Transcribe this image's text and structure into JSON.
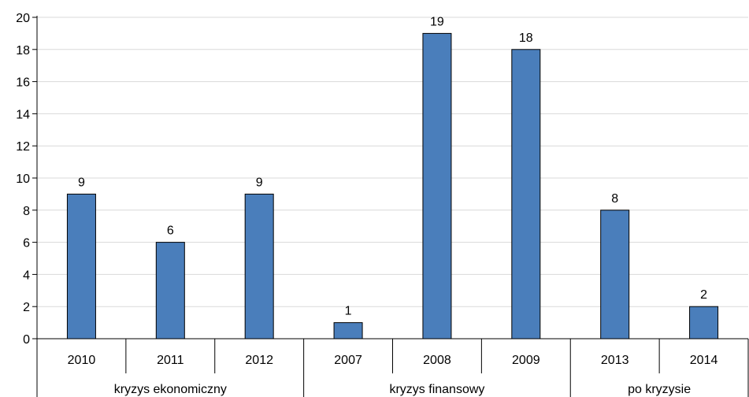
{
  "chart_data": {
    "type": "bar",
    "categories": [
      "2010",
      "2011",
      "2012",
      "2007",
      "2008",
      "2009",
      "2013",
      "2014"
    ],
    "values": [
      9,
      6,
      9,
      1,
      19,
      18,
      8,
      2
    ],
    "groups": [
      {
        "label": "kryzys ekonomiczny",
        "categories": [
          "2010",
          "2011",
          "2012"
        ]
      },
      {
        "label": "kryzys finansowy",
        "categories": [
          "2007",
          "2008",
          "2009"
        ]
      },
      {
        "label": "po kryzysie",
        "categories": [
          "2013",
          "2014"
        ]
      }
    ],
    "y_ticks": [
      "0",
      "2",
      "4",
      "6",
      "8",
      "10",
      "12",
      "14",
      "16",
      "18",
      "20"
    ],
    "ylim": [
      0,
      20
    ],
    "grid": true,
    "bar_color": "#4a7ebb",
    "title": "",
    "xlabel": "",
    "ylabel": ""
  }
}
